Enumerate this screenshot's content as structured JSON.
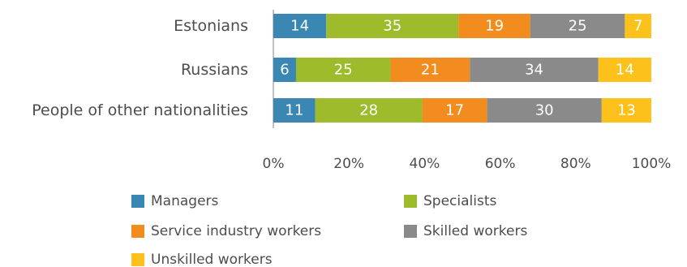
{
  "chart_data": {
    "type": "bar",
    "orientation": "horizontal",
    "stacked": true,
    "categories": [
      "Estonians",
      "Russians",
      "People of other nationalities"
    ],
    "series": [
      {
        "name": "Managers",
        "color": "#3a87b3",
        "values": [
          14,
          6,
          11
        ]
      },
      {
        "name": "Specialists",
        "color": "#9dbb2a",
        "values": [
          35,
          25,
          28
        ]
      },
      {
        "name": "Service industry workers",
        "color": "#f28c1e",
        "values": [
          19,
          21,
          17
        ]
      },
      {
        "name": "Skilled workers",
        "color": "#8a8a8a",
        "values": [
          25,
          34,
          30
        ]
      },
      {
        "name": "Unskilled workers",
        "color": "#fcc21b",
        "values": [
          7,
          14,
          13
        ]
      }
    ],
    "xlim": [
      0,
      100
    ],
    "xticks": [
      "0%",
      "20%",
      "40%",
      "60%",
      "80%",
      "100%"
    ],
    "legend_position": "bottom",
    "grid": false
  }
}
